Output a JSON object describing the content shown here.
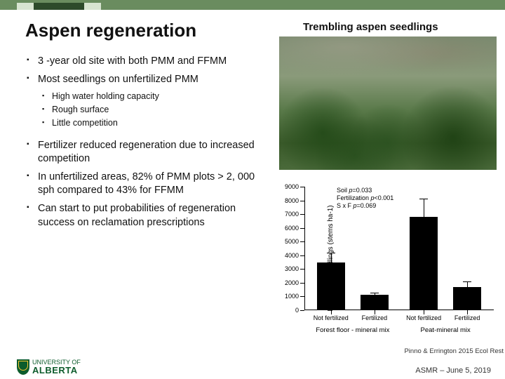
{
  "title": "Aspen regeneration",
  "subtitle": "Trembling aspen seedlings",
  "bullets_lvl1_a": [
    "3 -year old site with both PMM and FFMM",
    "Most seedlings on unfertilized PMM"
  ],
  "bullets_lvl2": [
    "High water holding capacity",
    "Rough surface",
    "Little competition"
  ],
  "bullets_lvl1_b": [
    "Fertilizer reduced regeneration due to increased competition",
    "In unfertilized areas, 82% of PMM plots > 2, 000 sph compared to 43% for FFMM",
    "Can start to put probabilities of regeneration success on reclamation prescriptions"
  ],
  "chart": {
    "type": "bar",
    "ylabel": "Deciduous seedlings (stems ha-1)",
    "ylim": [
      0,
      9000
    ],
    "ytick_step": 1000,
    "categories": [
      "Not fertilized",
      "Fertilized",
      "Not fertilized",
      "Fertilized"
    ],
    "groups": [
      "Forest floor - mineral mix",
      "Peat-mineral mix"
    ],
    "values": [
      3500,
      1100,
      6800,
      1700
    ],
    "errors": [
      700,
      200,
      1350,
      400
    ],
    "bar_color": "#000000",
    "background_color": "#ffffff",
    "stats": [
      {
        "label": "Soil",
        "p": "=0.033"
      },
      {
        "label": "Fertilization",
        "p": "<0.001"
      },
      {
        "label": "S x F",
        "p": "=0.069"
      }
    ]
  },
  "citation": "Pinno & Errington 2015 Ecol Rest",
  "footer": "ASMR – June 5, 2019",
  "logo": {
    "top": "UNIVERSITY OF",
    "name": "ALBERTA"
  }
}
